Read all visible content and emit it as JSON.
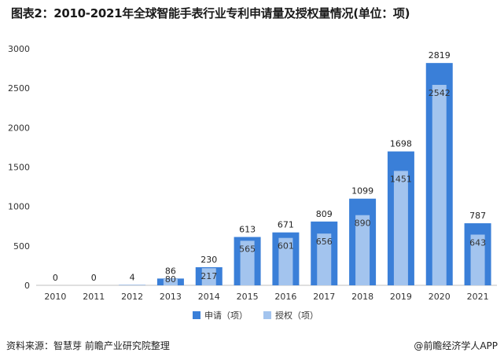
{
  "title": "图表2：2010-2021年全球智能手表行业专利申请量及授权量情况(单位：项)",
  "source": "资料来源：智慧芽 前瞻产业研究院整理",
  "publisher": "@前瞻经济学人APP",
  "colors": {
    "application": "#3a7fd8",
    "grant": "#a3c4ee",
    "axis": "#bfbfbf",
    "text": "#333333"
  },
  "chart_data": {
    "type": "bar",
    "title": "图表2：2010-2021年全球智能手表行业专利申请量及授权量情况(单位：项)",
    "xlabel": "",
    "ylabel": "",
    "categories": [
      "2010",
      "2011",
      "2012",
      "2013",
      "2014",
      "2015",
      "2016",
      "2017",
      "2018",
      "2019",
      "2020",
      "2021"
    ],
    "series": [
      {
        "name": "申请（项）",
        "values": [
          0,
          0,
          4,
          86,
          230,
          613,
          671,
          809,
          1099,
          1698,
          2819,
          787
        ]
      },
      {
        "name": "授权（项）",
        "values": [
          null,
          null,
          null,
          80,
          217,
          565,
          601,
          656,
          890,
          1451,
          2542,
          643
        ]
      }
    ],
    "y_ticks": [
      0,
      500,
      1000,
      1500,
      2000,
      2500,
      3000
    ],
    "ylim": [
      0,
      3000
    ],
    "grid": false,
    "legend": "bottom-center",
    "data_labels": true
  }
}
